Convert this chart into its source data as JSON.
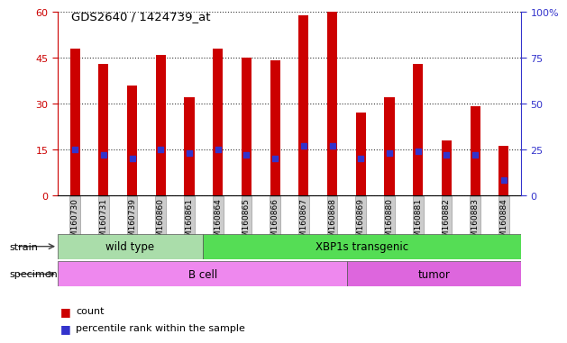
{
  "title": "GDS2640 / 1424739_at",
  "samples": [
    "GSM160730",
    "GSM160731",
    "GSM160739",
    "GSM160860",
    "GSM160861",
    "GSM160864",
    "GSM160865",
    "GSM160866",
    "GSM160867",
    "GSM160868",
    "GSM160869",
    "GSM160880",
    "GSM160881",
    "GSM160882",
    "GSM160883",
    "GSM160884"
  ],
  "counts": [
    48,
    43,
    36,
    46,
    32,
    48,
    45,
    44,
    59,
    60,
    27,
    32,
    43,
    18,
    29,
    16
  ],
  "percentile_ranks": [
    25,
    22,
    20,
    25,
    23,
    25,
    22,
    20,
    27,
    27,
    20,
    23,
    24,
    22,
    22,
    8
  ],
  "bar_color": "#cc0000",
  "dot_color": "#3333cc",
  "left_ylim": [
    0,
    60
  ],
  "right_ylim": [
    0,
    100
  ],
  "left_yticks": [
    0,
    15,
    30,
    45,
    60
  ],
  "right_yticks": [
    0,
    25,
    50,
    75,
    100
  ],
  "right_yticklabels": [
    "0",
    "25",
    "50",
    "75",
    "100%"
  ],
  "left_tick_color": "#cc0000",
  "right_tick_color": "#3333cc",
  "grid_color": "#333333",
  "strain_groups": [
    {
      "label": "wild type",
      "start": 0,
      "end": 5,
      "color": "#aaddaa"
    },
    {
      "label": "XBP1s transgenic",
      "start": 5,
      "end": 16,
      "color": "#55dd55"
    }
  ],
  "specimen_groups": [
    {
      "label": "B cell",
      "start": 0,
      "end": 10,
      "color": "#ee88ee"
    },
    {
      "label": "tumor",
      "start": 10,
      "end": 16,
      "color": "#dd66dd"
    }
  ],
  "bar_width": 0.35,
  "tick_bg_color": "#cccccc",
  "legend_count_color": "#cc0000",
  "legend_pct_color": "#3333cc",
  "background_color": "#ffffff"
}
